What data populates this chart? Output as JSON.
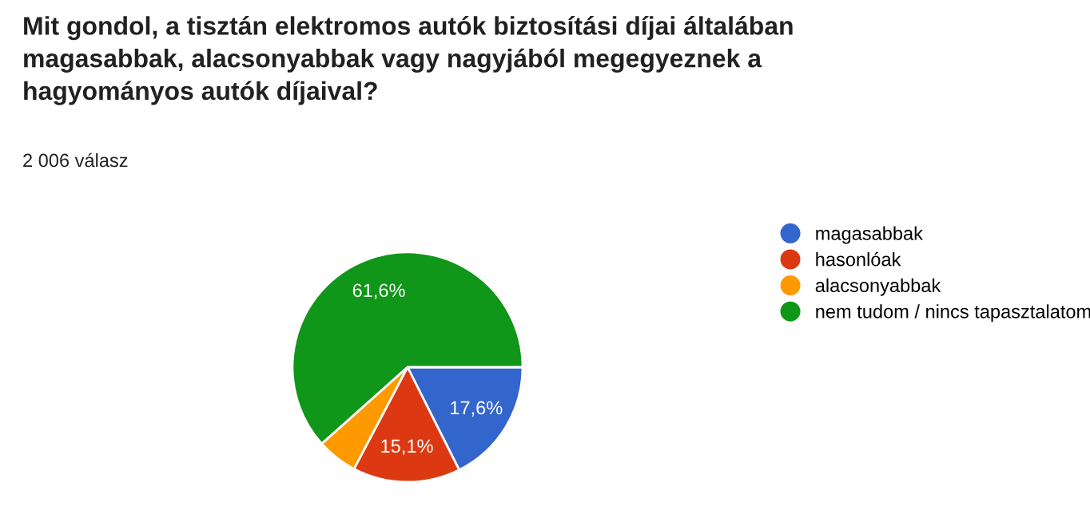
{
  "chart_data": {
    "type": "pie",
    "title": "Mit gondol, a tisztán elektromos autók biztosítási díjai általában\nmagasabbak, alacsonyabbak vagy nagyjából megegyeznek a\nhagyományos autók díjaival?",
    "subtitle": "2 006 válasz",
    "categories": [
      "magasabbak",
      "hasonlóak",
      "alacsonyabbak",
      "nem tudom / nincs tapasztalatom"
    ],
    "values": [
      17.6,
      15.1,
      5.7,
      61.6
    ],
    "colors": [
      "#3366cc",
      "#dc3912",
      "#ff9900",
      "#109618"
    ],
    "value_labels": [
      "17,6%",
      "15,1%",
      null,
      "61,6%"
    ],
    "legend": "right"
  }
}
